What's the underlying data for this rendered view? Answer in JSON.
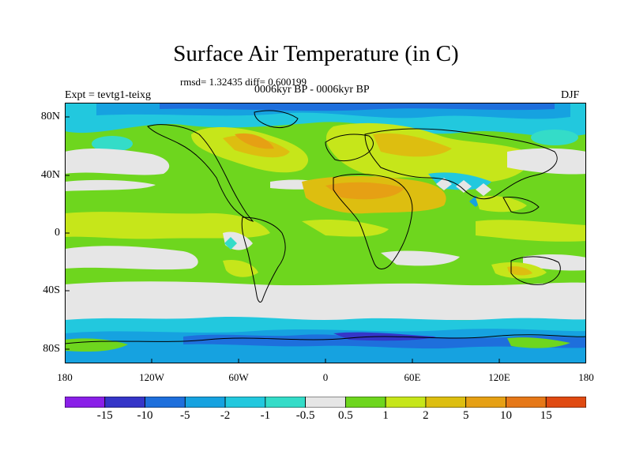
{
  "title": "Surface Air Temperature (in C)",
  "stats": "rmsd= 1.32435 diff= 0.600199",
  "period": "0006kyr BP - 0006kyr BP",
  "experiment": "Expt = tevtg1-teixg",
  "season": "DJF",
  "y_ticks": [
    "80N",
    "40N",
    "0",
    "40S",
    "80S"
  ],
  "x_ticks": [
    "180",
    "120W",
    "60W",
    "0",
    "60E",
    "120E",
    "180"
  ],
  "colorbar": {
    "labels": [
      "-15",
      "-10",
      "-5",
      "-2",
      "-1",
      "-0.5",
      "0.5",
      "1",
      "2",
      "5",
      "10",
      "15"
    ],
    "colors": [
      "#8a1fe8",
      "#3535c8",
      "#1e6fdc",
      "#16a2e0",
      "#22c8de",
      "#34dcc8",
      "#e6e6e6",
      "#6ed61e",
      "#c6e61a",
      "#ddbe10",
      "#e6a014",
      "#e67818",
      "#e04a12"
    ]
  },
  "map_colors": {
    "neutral": "#e6e6e6",
    "warm_1": "#6ed61e",
    "warm_2": "#c6e61a",
    "warm_5": "#ddbe10",
    "warm_10": "#e6a014",
    "cool_1": "#34dcc8",
    "cool_2": "#22c8de",
    "cool_5": "#16a2e0",
    "cool_10": "#1e6fdc",
    "cool_15": "#3535c8"
  }
}
